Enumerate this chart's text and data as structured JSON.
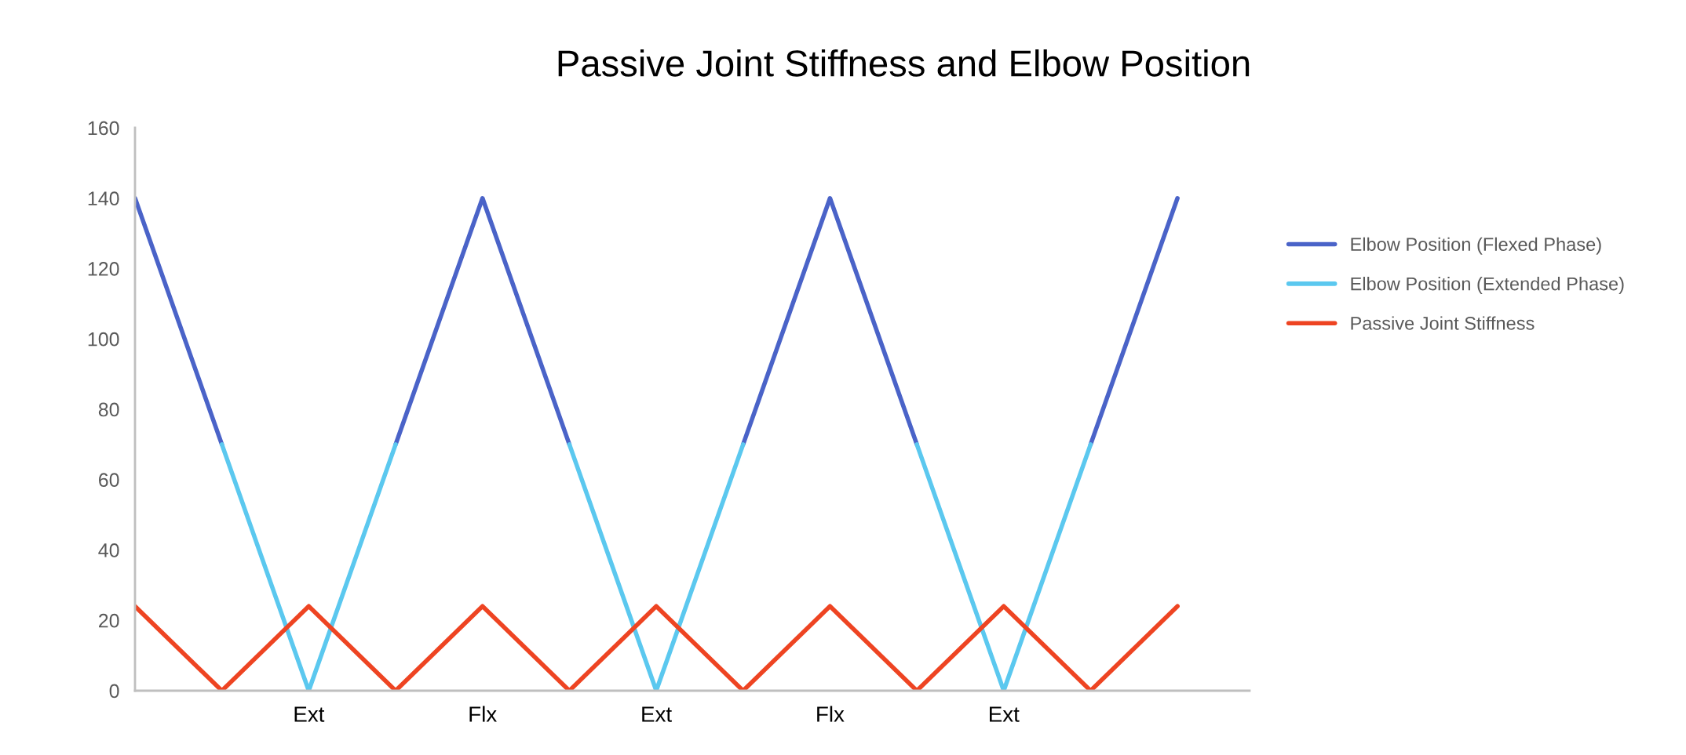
{
  "chart_data": {
    "type": "line",
    "title": "Passive Joint Stiffness and Elbow Position",
    "categories": [
      null,
      null,
      "Ext",
      null,
      "Flx",
      null,
      "Ext",
      null,
      "Flx",
      null,
      "Ext",
      null,
      null
    ],
    "series": [
      {
        "name": "Elbow Position (Flexed Phase)",
        "color": "#4a63c8",
        "values": [
          140,
          70,
          null,
          70,
          140,
          70,
          null,
          70,
          140,
          70,
          null,
          70,
          140
        ]
      },
      {
        "name": "Elbow Position (Extended Phase)",
        "color": "#5bc8ef",
        "values": [
          null,
          70,
          0,
          70,
          null,
          70,
          0,
          70,
          null,
          70,
          0,
          70,
          null
        ]
      },
      {
        "name": "Passive Joint Stiffness",
        "color": "#ee4422",
        "values": [
          24,
          0,
          24,
          0,
          24,
          0,
          24,
          0,
          24,
          0,
          24,
          0,
          24
        ]
      }
    ],
    "ylim": [
      0,
      160
    ],
    "yticks": [
      0,
      20,
      40,
      60,
      80,
      100,
      120,
      140,
      160
    ],
    "grid": false,
    "legend": "right",
    "marker": "none",
    "line_style": "solid"
  }
}
